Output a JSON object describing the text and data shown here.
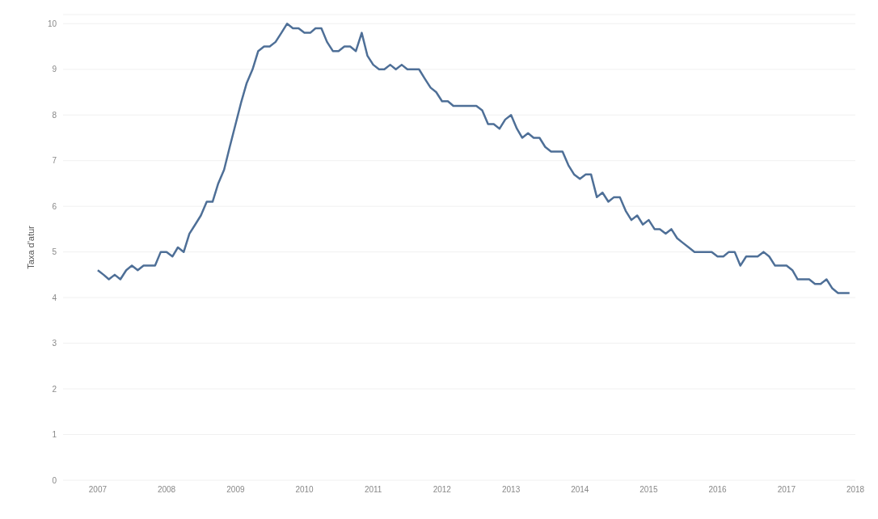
{
  "chart_data": {
    "type": "line",
    "ylabel": "Taxa d'atur",
    "x": [
      "2007-01",
      "2007-02",
      "2007-03",
      "2007-04",
      "2007-05",
      "2007-06",
      "2007-07",
      "2007-08",
      "2007-09",
      "2007-10",
      "2007-11",
      "2007-12",
      "2008-01",
      "2008-02",
      "2008-03",
      "2008-04",
      "2008-05",
      "2008-06",
      "2008-07",
      "2008-08",
      "2008-09",
      "2008-10",
      "2008-11",
      "2008-12",
      "2009-01",
      "2009-02",
      "2009-03",
      "2009-04",
      "2009-05",
      "2009-06",
      "2009-07",
      "2009-08",
      "2009-09",
      "2009-10",
      "2009-11",
      "2009-12",
      "2010-01",
      "2010-02",
      "2010-03",
      "2010-04",
      "2010-05",
      "2010-06",
      "2010-07",
      "2010-08",
      "2010-09",
      "2010-10",
      "2010-11",
      "2010-12",
      "2011-01",
      "2011-02",
      "2011-03",
      "2011-04",
      "2011-05",
      "2011-06",
      "2011-07",
      "2011-08",
      "2011-09",
      "2011-10",
      "2011-11",
      "2011-12",
      "2012-01",
      "2012-02",
      "2012-03",
      "2012-04",
      "2012-05",
      "2012-06",
      "2012-07",
      "2012-08",
      "2012-09",
      "2012-10",
      "2012-11",
      "2012-12",
      "2013-01",
      "2013-02",
      "2013-03",
      "2013-04",
      "2013-05",
      "2013-06",
      "2013-07",
      "2013-08",
      "2013-09",
      "2013-10",
      "2013-11",
      "2013-12",
      "2014-01",
      "2014-02",
      "2014-03",
      "2014-04",
      "2014-05",
      "2014-06",
      "2014-07",
      "2014-08",
      "2014-09",
      "2014-10",
      "2014-11",
      "2014-12",
      "2015-01",
      "2015-02",
      "2015-03",
      "2015-04",
      "2015-05",
      "2015-06",
      "2015-07",
      "2015-08",
      "2015-09",
      "2015-10",
      "2015-11",
      "2015-12",
      "2016-01",
      "2016-02",
      "2016-03",
      "2016-04",
      "2016-05",
      "2016-06",
      "2016-07",
      "2016-08",
      "2016-09",
      "2016-10",
      "2016-11",
      "2016-12",
      "2017-01",
      "2017-02",
      "2017-03",
      "2017-04",
      "2017-05",
      "2017-06",
      "2017-07",
      "2017-08",
      "2017-09",
      "2017-10",
      "2017-11",
      "2017-12"
    ],
    "series": [
      {
        "color": "#4e6f97",
        "values": [
          4.6,
          4.5,
          4.4,
          4.5,
          4.4,
          4.6,
          4.7,
          4.6,
          4.7,
          4.7,
          4.7,
          5.0,
          5.0,
          4.9,
          5.1,
          5.0,
          5.4,
          5.6,
          5.8,
          6.1,
          6.1,
          6.5,
          6.8,
          7.3,
          7.8,
          8.3,
          8.7,
          9.0,
          9.4,
          9.5,
          9.5,
          9.6,
          9.8,
          10.0,
          9.9,
          9.9,
          9.8,
          9.8,
          9.9,
          9.9,
          9.6,
          9.4,
          9.4,
          9.5,
          9.5,
          9.4,
          9.8,
          9.3,
          9.1,
          9.0,
          9.0,
          9.1,
          9.0,
          9.1,
          9.0,
          9.0,
          9.0,
          8.8,
          8.6,
          8.5,
          8.3,
          8.3,
          8.2,
          8.2,
          8.2,
          8.2,
          8.2,
          8.1,
          7.8,
          7.8,
          7.7,
          7.9,
          8.0,
          7.7,
          7.5,
          7.6,
          7.5,
          7.5,
          7.3,
          7.2,
          7.2,
          7.2,
          6.9,
          6.7,
          6.6,
          6.7,
          6.7,
          6.2,
          6.3,
          6.1,
          6.2,
          6.2,
          5.9,
          5.7,
          5.8,
          5.6,
          5.7,
          5.5,
          5.5,
          5.4,
          5.5,
          5.3,
          5.2,
          5.1,
          5.0,
          5.0,
          5.0,
          5.0,
          4.9,
          4.9,
          5.0,
          5.0,
          4.7,
          4.9,
          4.9,
          4.9,
          5.0,
          4.9,
          4.7,
          4.7,
          4.7,
          4.6,
          4.4,
          4.4,
          4.4,
          4.3,
          4.3,
          4.4,
          4.2,
          4.1,
          4.1,
          4.1
        ]
      }
    ],
    "xlim": [
      "2006-07",
      "2018-01"
    ],
    "xticks": [
      "2007",
      "2008",
      "2009",
      "2010",
      "2011",
      "2012",
      "2013",
      "2014",
      "2015",
      "2016",
      "2017",
      "2018"
    ],
    "ylim": [
      0,
      10.2
    ],
    "yticks": [
      0,
      1,
      2,
      3,
      4,
      5,
      6,
      7,
      8,
      9,
      10
    ],
    "grid": "y",
    "legend": false,
    "marker": "none",
    "line_style": "solid"
  }
}
